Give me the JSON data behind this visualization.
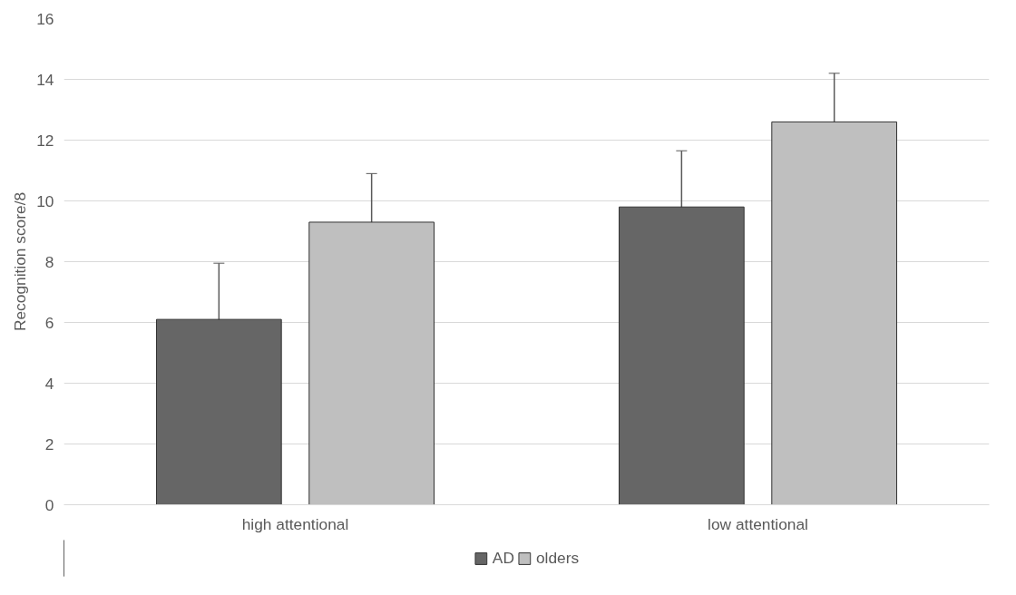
{
  "chart_data": {
    "type": "bar",
    "ylabel": "Recognition score/8",
    "categories": [
      "high attentional",
      "low attentional"
    ],
    "series": [
      {
        "name": "AD",
        "color": "#666666",
        "values": [
          6.1,
          9.8
        ],
        "errors": [
          1.85,
          1.85
        ]
      },
      {
        "name": "olders",
        "color": "#bfbfbf",
        "values": [
          9.3,
          12.6
        ],
        "errors": [
          1.6,
          1.6
        ]
      }
    ],
    "ylim": [
      0,
      16
    ],
    "yticks": [
      0,
      2,
      4,
      6,
      8,
      10,
      12,
      14,
      16
    ],
    "grid": "y",
    "legend": "bottom"
  }
}
